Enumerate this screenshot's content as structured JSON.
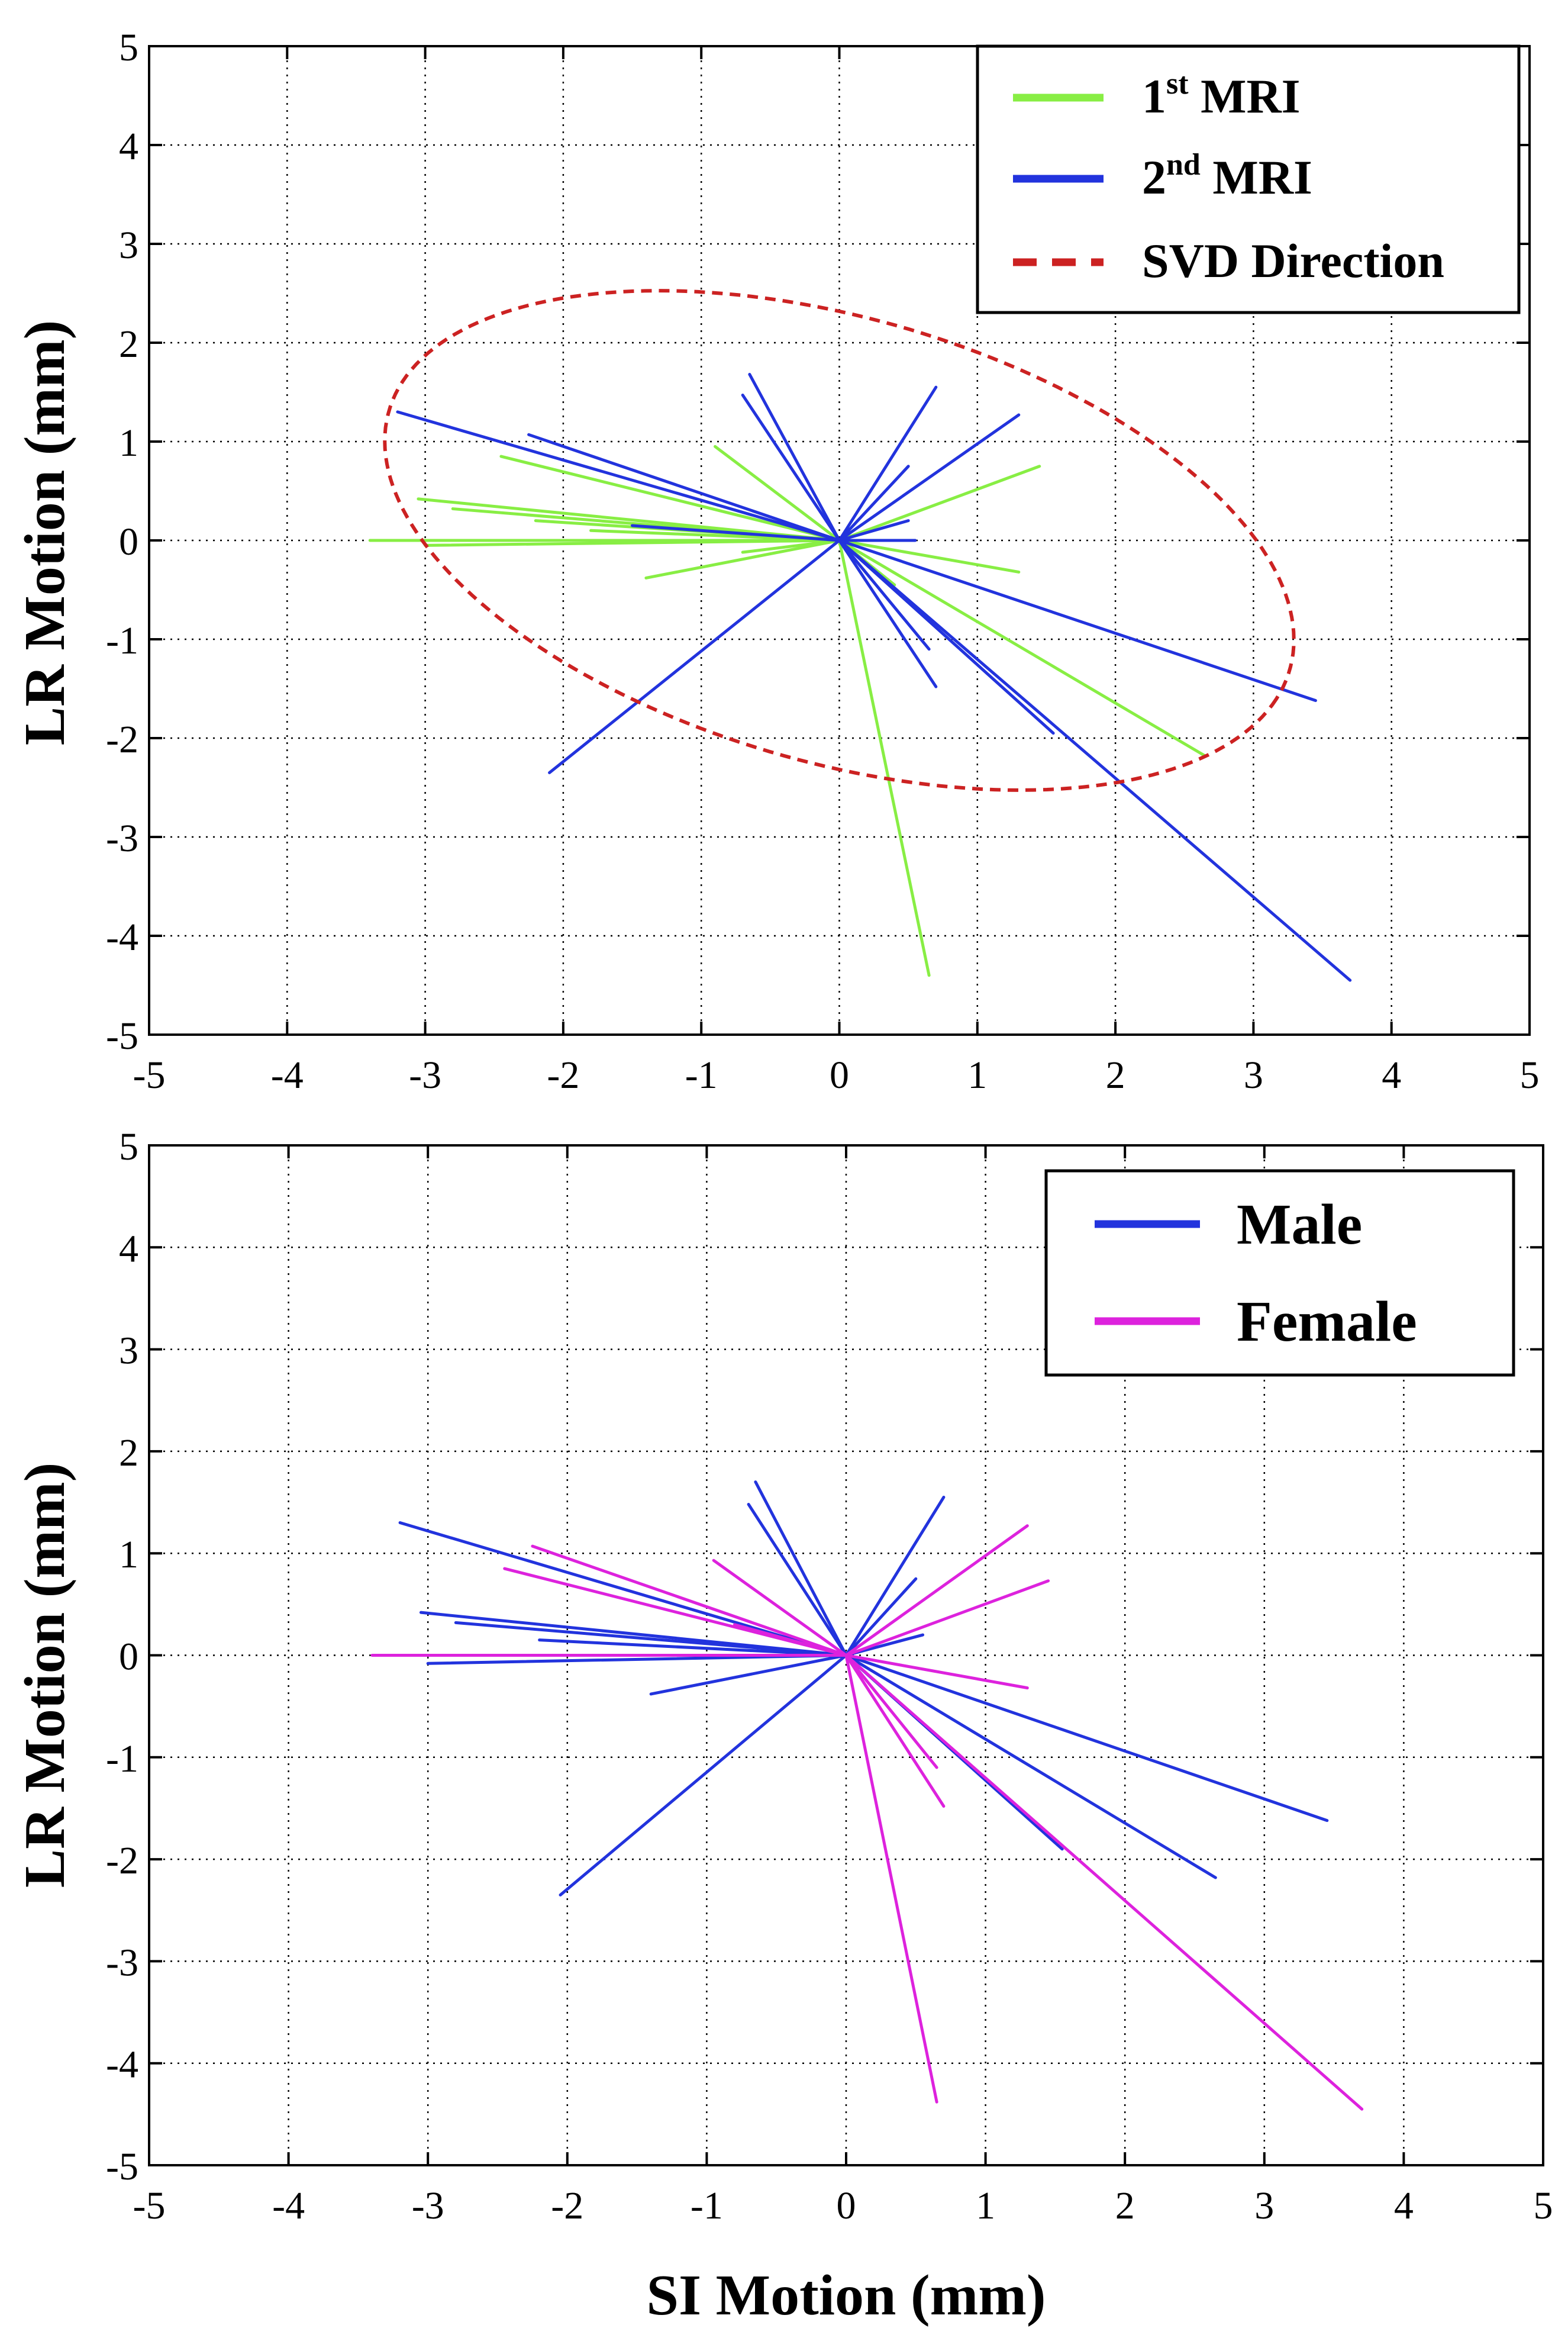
{
  "chart_data": [
    {
      "type": "line",
      "panel": "top",
      "title": "",
      "xlabel": "",
      "ylabel": "LR Motion (mm)",
      "xlim": [
        -5,
        5
      ],
      "ylim": [
        -5,
        5
      ],
      "xticks": [
        -5,
        -4,
        -3,
        -2,
        -1,
        0,
        1,
        2,
        3,
        4,
        5
      ],
      "yticks": [
        -5,
        -4,
        -3,
        -2,
        -1,
        0,
        1,
        2,
        3,
        4,
        5
      ],
      "grid": true,
      "legend_position": "top-right",
      "series": [
        {
          "name": "1st MRI",
          "label_main": "1",
          "label_sup": "st",
          "label_rest": " MRI",
          "color": "#88ee44",
          "dash": false,
          "segments": [
            [
              [
                0,
                0
              ],
              [
                -3.4,
                0
              ]
            ],
            [
              [
                0,
                0
              ],
              [
                -3.0,
                -0.05
              ]
            ],
            [
              [
                0,
                0
              ],
              [
                -3.05,
                0.42
              ]
            ],
            [
              [
                0,
                0
              ],
              [
                -2.8,
                0.32
              ]
            ],
            [
              [
                0,
                0
              ],
              [
                -2.45,
                0.85
              ]
            ],
            [
              [
                0,
                0
              ],
              [
                -2.2,
                0.2
              ]
            ],
            [
              [
                0,
                0
              ],
              [
                -1.8,
                0.1
              ]
            ],
            [
              [
                0,
                0
              ],
              [
                -1.4,
                -0.38
              ]
            ],
            [
              [
                0,
                0
              ],
              [
                -0.9,
                0.95
              ]
            ],
            [
              [
                0,
                0
              ],
              [
                -0.7,
                -0.12
              ]
            ],
            [
              [
                0,
                0
              ],
              [
                1.45,
                0.75
              ]
            ],
            [
              [
                0,
                0
              ],
              [
                1.3,
                -0.32
              ]
            ],
            [
              [
                0,
                0
              ],
              [
                2.65,
                -2.18
              ]
            ],
            [
              [
                0,
                0
              ],
              [
                0.65,
                -4.4
              ]
            ],
            [
              [
                0,
                0
              ],
              [
                0.4,
                -0.45
              ]
            ]
          ]
        },
        {
          "name": "2nd MRI",
          "label_main": "2",
          "label_sup": "nd",
          "label_rest": " MRI",
          "color": "#2233dd",
          "dash": false,
          "segments": [
            [
              [
                0,
                0
              ],
              [
                -3.2,
                1.3
              ]
            ],
            [
              [
                0,
                0
              ],
              [
                -2.25,
                1.07
              ]
            ],
            [
              [
                0,
                0
              ],
              [
                -1.5,
                0.15
              ]
            ],
            [
              [
                0,
                0
              ],
              [
                -2.1,
                -2.35
              ]
            ],
            [
              [
                0,
                0
              ],
              [
                -0.65,
                1.68
              ]
            ],
            [
              [
                0,
                0
              ],
              [
                -0.7,
                1.47
              ]
            ],
            [
              [
                0,
                0
              ],
              [
                0.7,
                1.55
              ]
            ],
            [
              [
                0,
                0
              ],
              [
                1.3,
                1.27
              ]
            ],
            [
              [
                0,
                0
              ],
              [
                0.5,
                0.75
              ]
            ],
            [
              [
                0,
                0
              ],
              [
                0.5,
                0.2
              ]
            ],
            [
              [
                0,
                0
              ],
              [
                0.55,
                0.0
              ]
            ],
            [
              [
                0,
                0
              ],
              [
                3.45,
                -1.62
              ]
            ],
            [
              [
                0,
                0
              ],
              [
                3.7,
                -4.45
              ]
            ],
            [
              [
                0,
                0
              ],
              [
                0.7,
                -1.48
              ]
            ],
            [
              [
                0,
                0
              ],
              [
                0.65,
                -1.1
              ]
            ],
            [
              [
                0,
                0
              ],
              [
                1.55,
                -1.95
              ]
            ]
          ]
        },
        {
          "name": "SVD Direction",
          "color": "#cc2222",
          "dash": true,
          "ellipse": {
            "center": [
              0,
              0
            ],
            "semi_major": 3.55,
            "semi_minor": 2.15,
            "angle_deg": -28
          }
        }
      ]
    },
    {
      "type": "line",
      "panel": "bottom",
      "title": "",
      "xlabel": "SI Motion (mm)",
      "ylabel": "LR Motion (mm)",
      "xlim": [
        -5,
        5
      ],
      "ylim": [
        -5,
        5
      ],
      "xticks": [
        -5,
        -4,
        -3,
        -2,
        -1,
        0,
        1,
        2,
        3,
        4,
        5
      ],
      "yticks": [
        -5,
        -4,
        -3,
        -2,
        -1,
        0,
        1,
        2,
        3,
        4,
        5
      ],
      "grid": true,
      "legend_position": "top-right",
      "series": [
        {
          "name": "Male",
          "color": "#2233dd",
          "dash": false,
          "segments": [
            [
              [
                0,
                0
              ],
              [
                -3.2,
                1.3
              ]
            ],
            [
              [
                0,
                0
              ],
              [
                -3.05,
                0.42
              ]
            ],
            [
              [
                0,
                0
              ],
              [
                -3.0,
                -0.08
              ]
            ],
            [
              [
                0,
                0
              ],
              [
                -2.8,
                0.32
              ]
            ],
            [
              [
                0,
                0
              ],
              [
                -2.2,
                0.15
              ]
            ],
            [
              [
                0,
                0
              ],
              [
                -1.4,
                -0.38
              ]
            ],
            [
              [
                0,
                0
              ],
              [
                -2.05,
                -2.35
              ]
            ],
            [
              [
                0,
                0
              ],
              [
                -0.65,
                1.7
              ]
            ],
            [
              [
                0,
                0
              ],
              [
                -0.7,
                1.48
              ]
            ],
            [
              [
                0,
                0
              ],
              [
                0.7,
                1.55
              ]
            ],
            [
              [
                0,
                0
              ],
              [
                0.5,
                0.75
              ]
            ],
            [
              [
                0,
                0
              ],
              [
                0.55,
                0.2
              ]
            ],
            [
              [
                0,
                0
              ],
              [
                3.45,
                -1.62
              ]
            ],
            [
              [
                0,
                0
              ],
              [
                2.65,
                -2.18
              ]
            ],
            [
              [
                0,
                0
              ],
              [
                1.55,
                -1.9
              ]
            ]
          ]
        },
        {
          "name": "Female",
          "color": "#dd22dd",
          "dash": false,
          "segments": [
            [
              [
                0,
                0
              ],
              [
                -3.4,
                0
              ]
            ],
            [
              [
                0,
                0
              ],
              [
                -2.25,
                1.07
              ]
            ],
            [
              [
                0,
                0
              ],
              [
                -2.45,
                0.85
              ]
            ],
            [
              [
                0,
                0
              ],
              [
                -0.95,
                0.93
              ]
            ],
            [
              [
                0,
                0
              ],
              [
                -0.8,
                0.3
              ]
            ],
            [
              [
                0,
                0
              ],
              [
                1.3,
                1.27
              ]
            ],
            [
              [
                0,
                0
              ],
              [
                1.45,
                0.73
              ]
            ],
            [
              [
                0,
                0
              ],
              [
                1.3,
                -0.32
              ]
            ],
            [
              [
                0,
                0
              ],
              [
                3.7,
                -4.45
              ]
            ],
            [
              [
                0,
                0
              ],
              [
                0.65,
                -4.38
              ]
            ],
            [
              [
                0,
                0
              ],
              [
                0.7,
                -1.48
              ]
            ],
            [
              [
                0,
                0
              ],
              [
                0.65,
                -1.1
              ]
            ]
          ]
        }
      ]
    }
  ]
}
